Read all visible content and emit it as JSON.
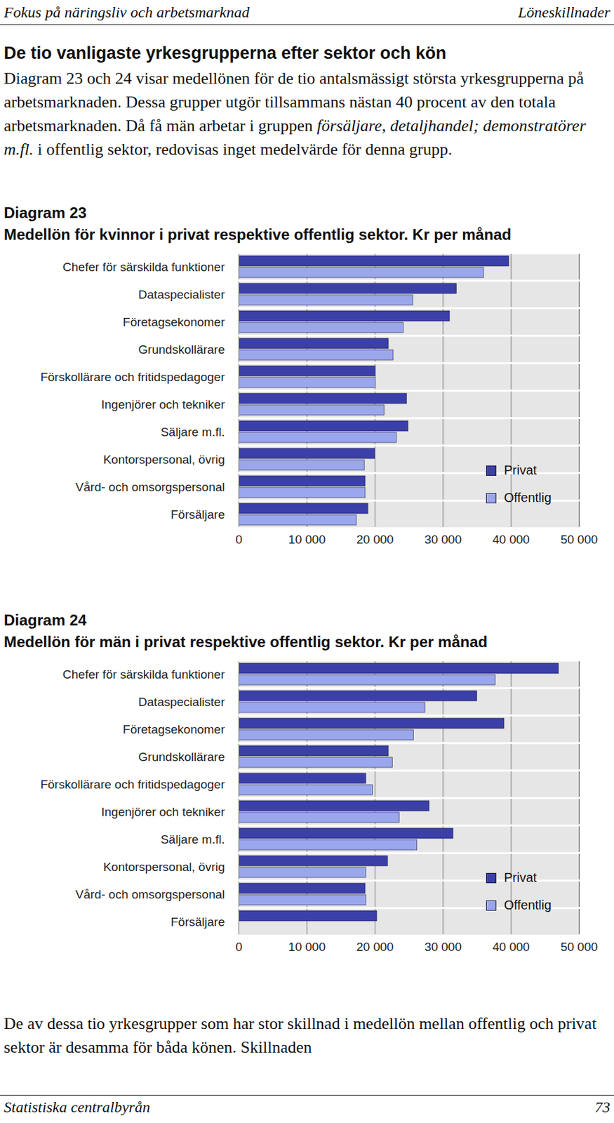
{
  "header": {
    "left": "Fokus på näringsliv och arbetsmarknad",
    "right": "Löneskillnader"
  },
  "heading": "De tio vanligaste yrkesgrupperna efter sektor och kön",
  "intro": [
    {
      "text": "Diagram 23 och 24 visar medellönen för de tio antalsmässigt största yrkesgrupperna på arbetsmarknaden. Dessa grupper utgör tillsammans nästan 40 procent av den totala arbetsmarknaden. Då få män arbetar i gruppen "
    },
    {
      "text": "försäljare, detaljhandel; demonstratörer m.fl.",
      "style": "italic"
    },
    {
      "text": " i offentlig sektor, redovisas inget medelvärde för denna grupp."
    }
  ],
  "chart_data": [
    {
      "type": "bar",
      "orientation": "horizontal",
      "label": "Diagram 23",
      "title": "Medellön för kvinnor i privat respektive offentlig sektor. Kr per månad",
      "categories": [
        "Chefer för särskilda funktioner",
        "Dataspecialister",
        "Företagsekonomer",
        "Grundskollärare",
        "Förskollärare och fritidspedagoger",
        "Ingenjörer och tekniker",
        "Säljare m.fl.",
        "Kontorspersonal, övrig",
        "Vård- och omsorgspersonal",
        "Försäljare"
      ],
      "series": [
        {
          "name": "Privat",
          "color": "#3b3fa8",
          "values": [
            39700,
            32000,
            31000,
            22000,
            20100,
            24700,
            24900,
            20000,
            18600,
            19000
          ]
        },
        {
          "name": "Offentlig",
          "color": "#9ba7ec",
          "values": [
            36000,
            25600,
            24200,
            22700,
            20100,
            21400,
            23200,
            18500,
            18600,
            17300
          ]
        }
      ],
      "xlim": [
        0,
        50000
      ],
      "xticks": [
        0,
        {
          "value": 10000,
          "label": "10 000"
        },
        {
          "value": 20000,
          "label": "20 000"
        },
        {
          "value": 30000,
          "label": "30 000"
        },
        {
          "value": 40000,
          "label": "40 000"
        },
        {
          "value": 50000,
          "label": "50 000"
        }
      ],
      "grid": true,
      "legend": "bottom right"
    },
    {
      "type": "bar",
      "orientation": "horizontal",
      "label": "Diagram 24",
      "title": "Medellön för män i privat respektive offentlig sektor. Kr per månad",
      "categories": [
        "Chefer för särskilda funktioner",
        "Dataspecialister",
        "Företagsekonomer",
        "Grundskollärare",
        "Förskollärare och fritidspedagoger",
        "Ingenjörer och tekniker",
        "Säljare m.fl.",
        "Kontorspersonal, övrig",
        "Vård- och omsorgspersonal",
        "Försäljare"
      ],
      "series": [
        {
          "name": "Privat",
          "color": "#3b3fa8",
          "values": [
            47000,
            35000,
            39000,
            22000,
            18700,
            28000,
            31500,
            21900,
            18600,
            20300
          ]
        },
        {
          "name": "Offentlig",
          "color": "#9ba7ec",
          "values": [
            37700,
            27400,
            25700,
            22600,
            19700,
            23600,
            26200,
            18700,
            18700,
            null
          ]
        }
      ],
      "xlim": [
        0,
        50000
      ],
      "xticks": [
        0,
        {
          "value": 10000,
          "label": "10 000"
        },
        {
          "value": 20000,
          "label": "20 000"
        },
        {
          "value": 30000,
          "label": "30 000"
        },
        {
          "value": 40000,
          "label": "40 000"
        },
        {
          "value": 50000,
          "label": "50 000"
        }
      ],
      "grid": true,
      "legend": "bottom right"
    }
  ],
  "closing": "De av dessa tio yrkesgrupper som har stor skillnad i medellön mellan offentlig och privat sektor är desamma för båda könen. Skillnaden",
  "footer": {
    "left": "Statistiska centralbyrån",
    "right": "73"
  }
}
